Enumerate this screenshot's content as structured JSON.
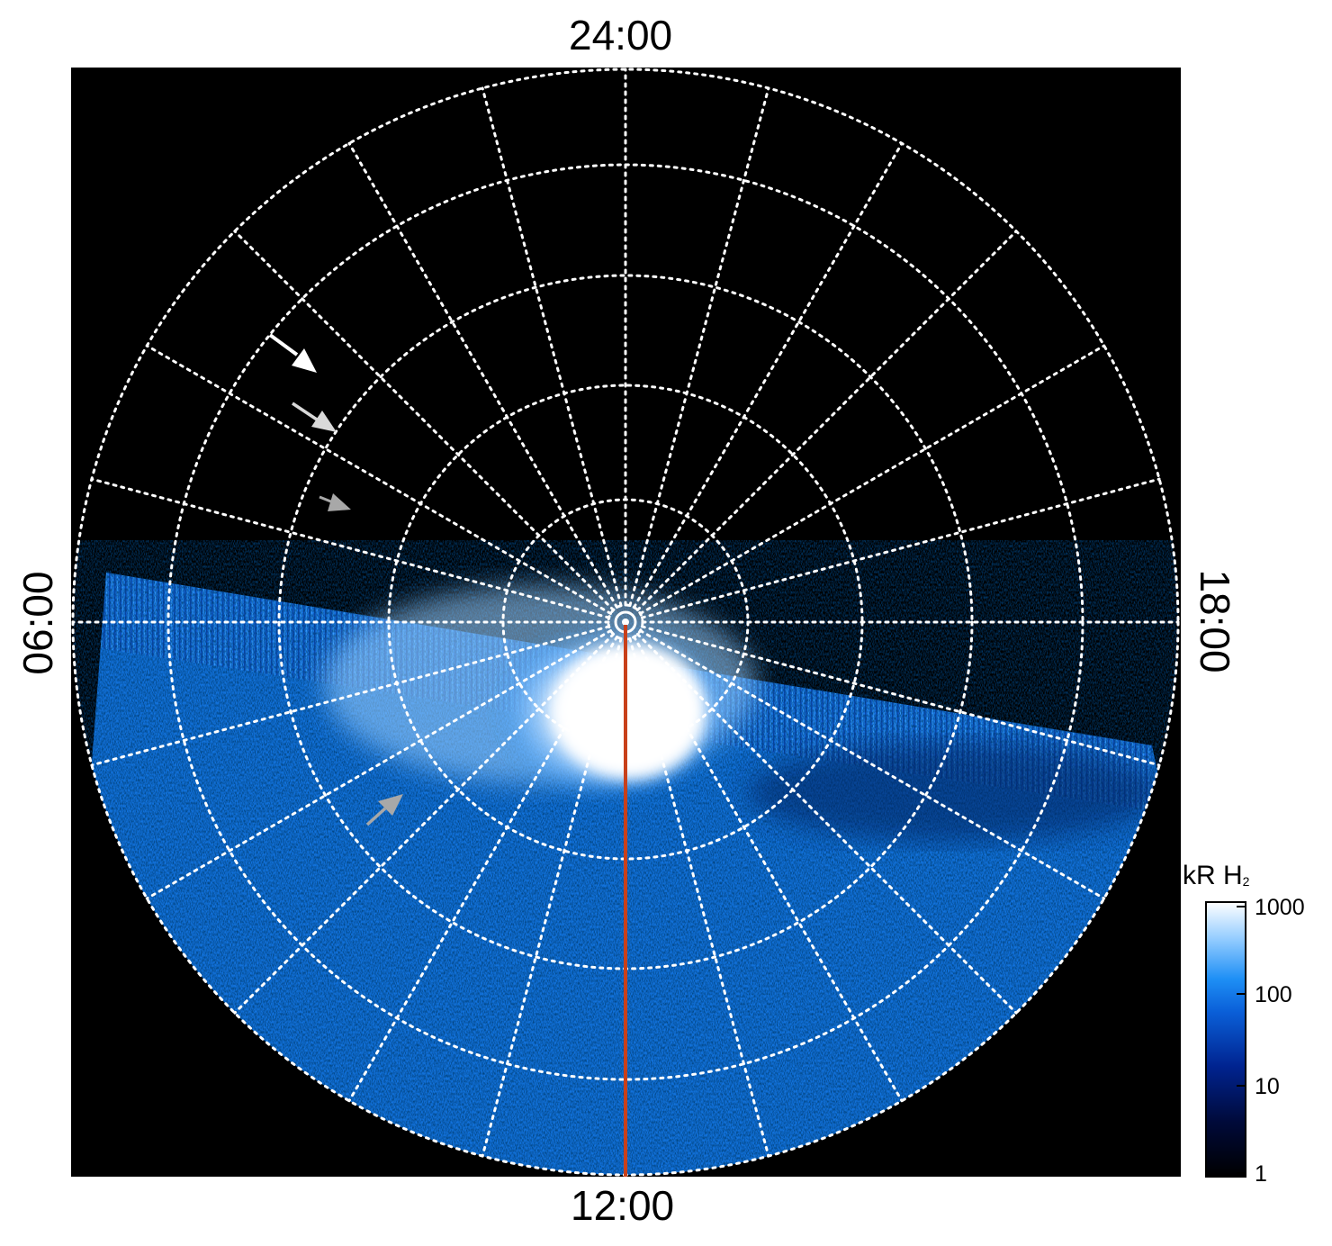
{
  "map": {
    "labels": {
      "top": "24:00",
      "bottom": "12:00",
      "left": "06:00",
      "right": "18:00"
    },
    "colors": {
      "background": "#000000",
      "grid": "#ffffff",
      "noon_meridian": "#c8401a"
    },
    "arrows": [
      {
        "name": "arrow-1",
        "color": "#ffffff"
      },
      {
        "name": "arrow-2",
        "color": "#d9d9d9"
      },
      {
        "name": "arrow-3",
        "color": "#a8a8a8"
      },
      {
        "name": "arrow-4",
        "color": "#a8a8a8"
      }
    ]
  },
  "colorbar": {
    "title": "kR H",
    "title_subscript": "2",
    "scale": "log",
    "ticks": [
      "1000",
      "100",
      "10",
      "1"
    ],
    "colors": [
      "#000000",
      "#000a3a",
      "#00238f",
      "#0a5fd8",
      "#1e8ff5",
      "#8fcaff",
      "#ffffff"
    ]
  }
}
